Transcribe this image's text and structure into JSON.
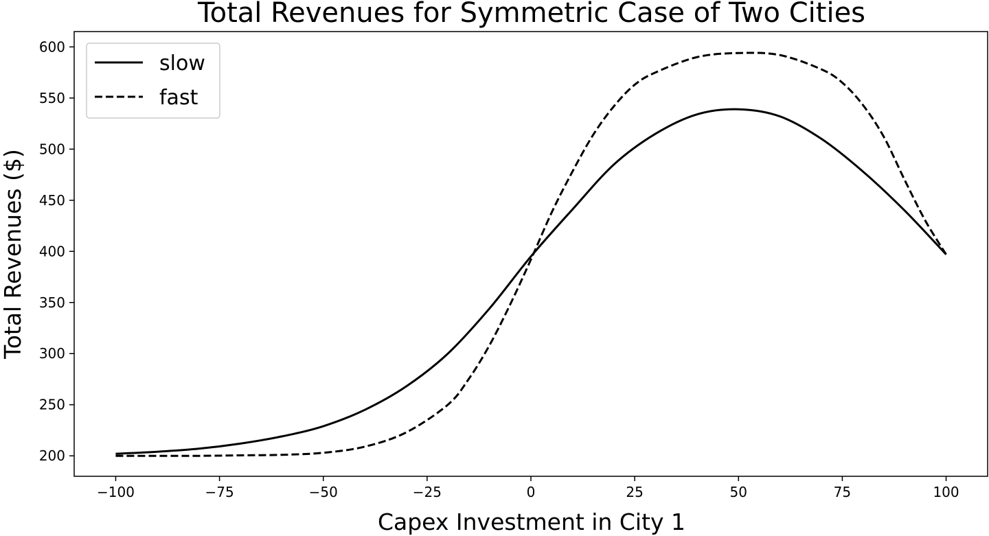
{
  "chart_data": {
    "type": "line",
    "title": "Total Revenues for Symmetric Case of Two Cities",
    "xlabel": "Capex Investment in City 1",
    "ylabel": "Total Revenues ($)",
    "xlim": [
      -110,
      110
    ],
    "ylim": [
      180,
      615
    ],
    "xticks": [
      -100,
      -75,
      -50,
      -25,
      0,
      25,
      50,
      75,
      100
    ],
    "xtick_labels": [
      "−100",
      "−75",
      "−50",
      "−25",
      "0",
      "25",
      "50",
      "75",
      "100"
    ],
    "yticks": [
      200,
      250,
      300,
      350,
      400,
      450,
      500,
      550,
      600
    ],
    "ytick_labels": [
      "200",
      "250",
      "300",
      "350",
      "400",
      "450",
      "500",
      "550",
      "600"
    ],
    "grid": false,
    "legend_position": "top-left",
    "series": [
      {
        "name": "slow",
        "style": "solid",
        "color": "#000000",
        "x": [
          -100,
          -90,
          -80,
          -70,
          -60,
          -50,
          -40,
          -30,
          -20,
          -10,
          0,
          10,
          20,
          30,
          40,
          50,
          60,
          70,
          80,
          90,
          100
        ],
        "y": [
          202,
          204,
          207,
          212,
          219,
          229,
          245,
          268,
          300,
          344,
          395,
          441,
          485,
          515,
          534,
          539,
          532,
          510,
          478,
          440,
          397
        ]
      },
      {
        "name": "fast",
        "style": "dashed",
        "color": "#000000",
        "x": [
          -100,
          -90,
          -80,
          -70,
          -60,
          -50,
          -40,
          -30,
          -20,
          -15,
          -10,
          -5,
          0,
          5,
          10,
          15,
          20,
          25,
          30,
          40,
          50,
          60,
          70,
          75,
          80,
          85,
          90,
          95,
          100
        ],
        "y": [
          200,
          200,
          200,
          200.5,
          201,
          203,
          209,
          223,
          250,
          275,
          308,
          348,
          392,
          438,
          478,
          514,
          542,
          563,
          575,
          590,
          594,
          592,
          578,
          565,
          543,
          512,
          470,
          430,
          397
        ]
      }
    ]
  }
}
